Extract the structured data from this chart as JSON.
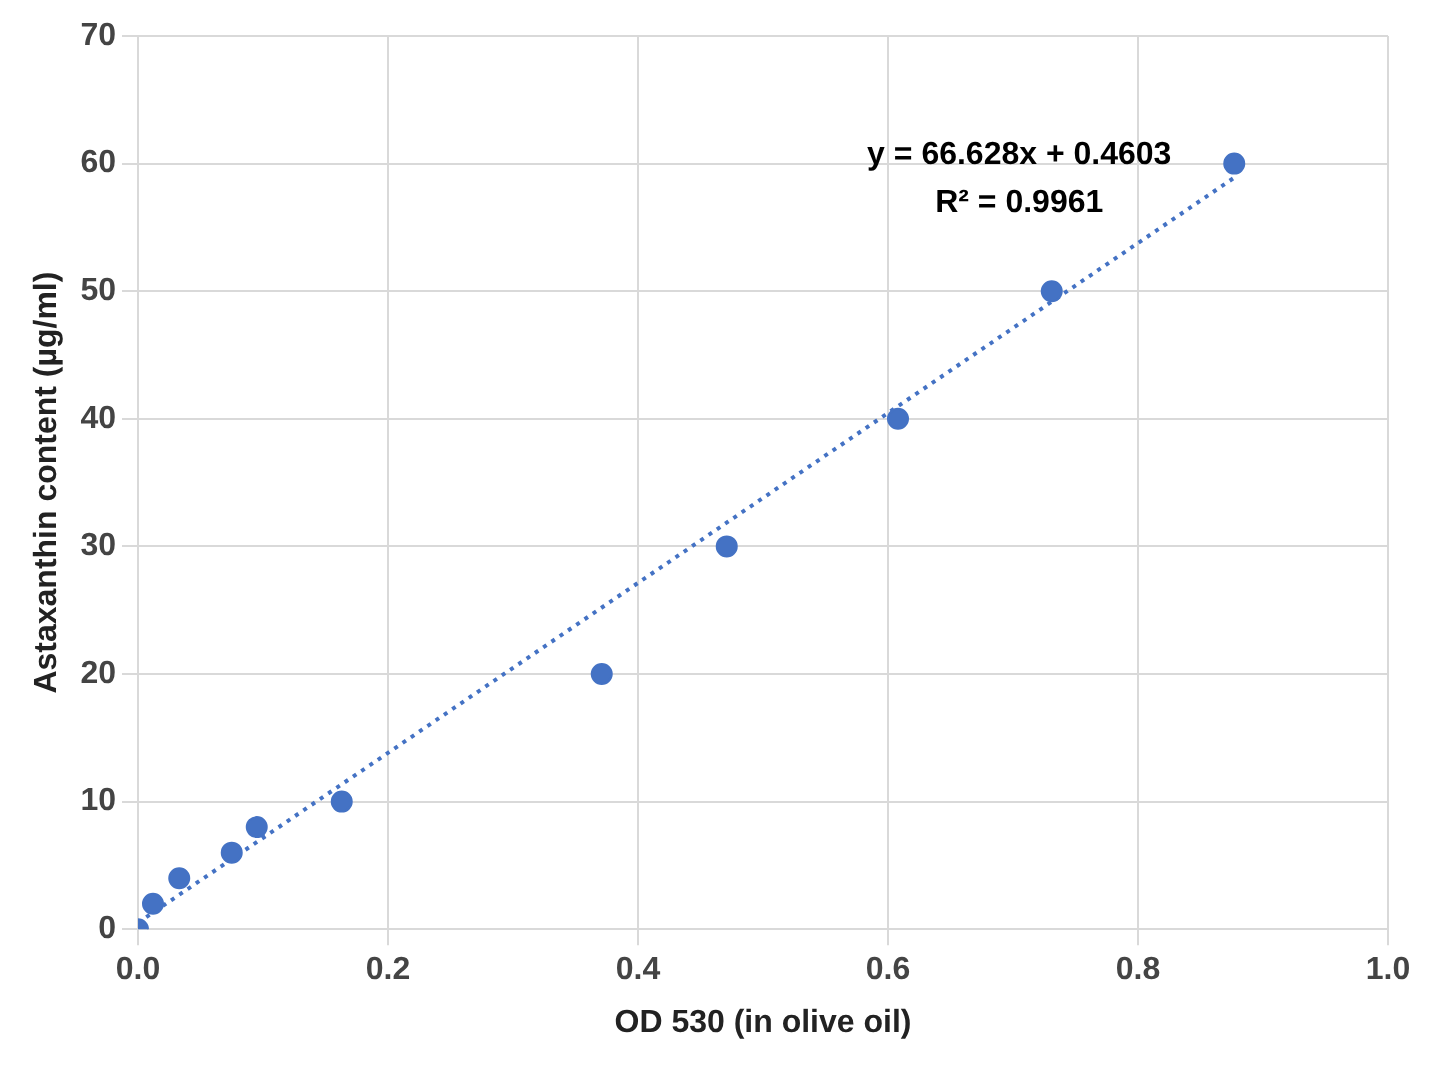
{
  "chart_data": {
    "type": "scatter",
    "xlabel": "OD 530 (in olive oil)",
    "ylabel": "Astaxanthin content (µg/ml)",
    "xlim": [
      0,
      1
    ],
    "xticks": [
      {
        "value": 0,
        "label": "0.0"
      },
      {
        "value": 0.2,
        "label": "0.2"
      },
      {
        "value": 0.4,
        "label": "0.4"
      },
      {
        "value": 0.6,
        "label": "0.6"
      },
      {
        "value": 0.8,
        "label": "0.8"
      },
      {
        "value": 1,
        "label": "1.0"
      }
    ],
    "ylim": [
      0,
      70
    ],
    "yticks": [
      0,
      10,
      20,
      30,
      40,
      50,
      60,
      70
    ],
    "grid": true,
    "legend": false,
    "marker": "circle",
    "series": [
      {
        "color": "#4472c4",
        "x": [
          0,
          0.012,
          0.033,
          0.075,
          0.095,
          0.163,
          0.371,
          0.471,
          0.608,
          0.731,
          0.877
        ],
        "values": [
          0,
          2,
          4,
          6,
          8,
          10,
          20,
          30,
          40,
          50,
          60
        ]
      },
      {
        "type": "line",
        "color": "#4472c4",
        "line_style": "dotted",
        "marker": "none",
        "x": [
          0,
          0.877
        ],
        "values": [
          0.5,
          58.9
        ]
      }
    ],
    "annotations": [
      "y = 66.628x + 0.4603",
      "R² = 0.9961"
    ]
  }
}
